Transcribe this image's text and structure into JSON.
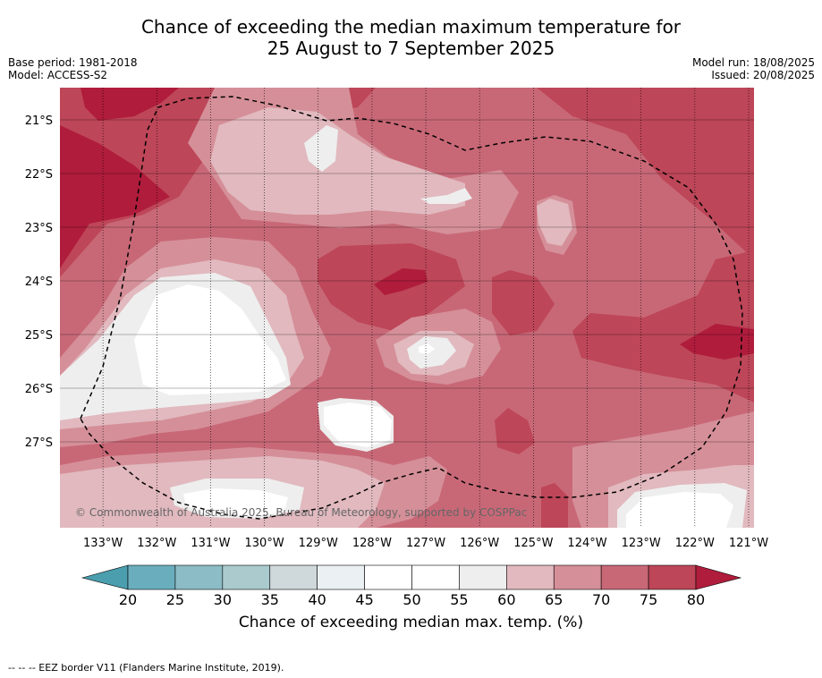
{
  "title": {
    "line1": "Chance of exceeding the median maximum temperature for",
    "line2": "25 August to 7 September 2025"
  },
  "meta": {
    "base_period": "Base period: 1981-2018",
    "model": "Model: ACCESS-S2",
    "model_run": "Model run: 18/08/2025",
    "issued": "Issued: 20/08/2025"
  },
  "copyright": "© Commonwealth of Australia 2025, Bureau of Meteorology, supported by COSPPac",
  "footnote": "--  --  -- EEZ border V11 (Flanders Marine Institute, 2019).",
  "map": {
    "lon_labels": [
      "133°W",
      "132°W",
      "131°W",
      "130°W",
      "129°W",
      "128°W",
      "127°W",
      "126°W",
      "125°W",
      "124°W",
      "123°W",
      "122°W",
      "121°W"
    ],
    "lat_labels": [
      "21°S",
      "22°S",
      "23°S",
      "24°S",
      "25°S",
      "26°S",
      "27°S"
    ],
    "lon_values": [
      -133,
      -132,
      -131,
      -130,
      -129,
      -128,
      -127,
      -126,
      -125,
      -124,
      -123,
      -122,
      -121
    ],
    "lat_values": [
      -21,
      -22,
      -23,
      -24,
      -25,
      -26,
      -27
    ],
    "extent": {
      "lon_min": -133.8,
      "lon_max": -120.9,
      "lat_min": -28.6,
      "lat_max": -20.4
    }
  },
  "colorbar": {
    "label": "Chance of exceeding median max. temp. (%)",
    "ticks": [
      "20",
      "25",
      "30",
      "35",
      "40",
      "45",
      "50",
      "55",
      "60",
      "65",
      "70",
      "75",
      "80"
    ],
    "tick_values": [
      20,
      25,
      30,
      35,
      40,
      45,
      50,
      55,
      60,
      65,
      70,
      75,
      80
    ],
    "under_color": "#4a9eae",
    "over_color": "#b01c3c",
    "colors": [
      "#6aaebe",
      "#8cbcc6",
      "#aacace",
      "#cfd8da",
      "#ebf0f2",
      "#ffffff",
      "#ffffff",
      "#eeeeee",
      "#e1b9bf",
      "#d58f98",
      "#c86877",
      "#bd4658"
    ]
  },
  "fills": {
    "c55": "#eeeeee",
    "c60": "#e1b9bf",
    "c65": "#d58f98",
    "c70": "#c86877",
    "c75": "#bd4658",
    "c80": "#b01c3c",
    "white": "#ffffff"
  }
}
